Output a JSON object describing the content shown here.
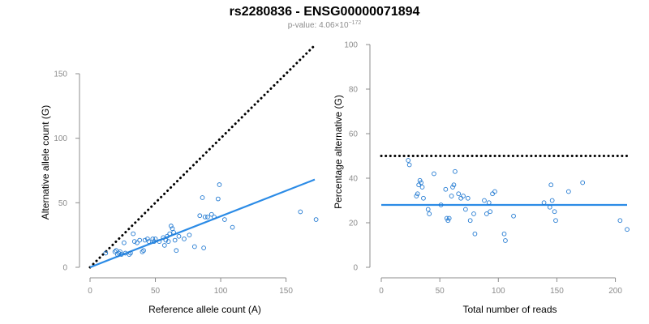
{
  "header": {
    "title": "rs2280836 - ENSG00000071894",
    "pvalue_prefix": "p-value: 4.06×10",
    "pvalue_exponent": "−172"
  },
  "colors": {
    "points": "#1f78d1",
    "fit_line": "#2b8be6",
    "reference_line": "#000000",
    "axis": "#8c8c8c"
  },
  "chart_data": [
    {
      "id": "left",
      "type": "scatter",
      "title": "",
      "xlabel": "Reference allele count (A)",
      "ylabel": "Alternative allele count (G)",
      "xlim": [
        0,
        172
      ],
      "ylim": [
        0,
        150
      ],
      "xticks": [
        0,
        50,
        100,
        150
      ],
      "yticks": [
        0,
        50,
        100,
        150
      ],
      "grid": false,
      "points": [
        [
          12,
          11
        ],
        [
          19,
          12
        ],
        [
          20,
          13
        ],
        [
          21,
          10
        ],
        [
          22,
          11
        ],
        [
          23,
          12
        ],
        [
          24,
          10
        ],
        [
          26,
          19
        ],
        [
          27,
          11
        ],
        [
          30,
          10
        ],
        [
          31,
          11
        ],
        [
          33,
          26
        ],
        [
          34,
          20
        ],
        [
          36,
          19
        ],
        [
          38,
          21
        ],
        [
          40,
          12
        ],
        [
          41,
          13
        ],
        [
          42,
          21
        ],
        [
          44,
          22
        ],
        [
          45,
          20
        ],
        [
          48,
          22
        ],
        [
          49,
          20
        ],
        [
          50,
          22
        ],
        [
          53,
          20
        ],
        [
          56,
          23
        ],
        [
          57,
          17
        ],
        [
          58,
          21
        ],
        [
          59,
          24
        ],
        [
          60,
          20
        ],
        [
          61,
          26
        ],
        [
          62,
          32
        ],
        [
          63,
          30
        ],
        [
          64,
          27
        ],
        [
          65,
          21
        ],
        [
          66,
          13
        ],
        [
          68,
          24
        ],
        [
          72,
          22
        ],
        [
          76,
          25
        ],
        [
          80,
          16
        ],
        [
          84,
          40
        ],
        [
          86,
          54
        ],
        [
          87,
          15
        ],
        [
          88,
          39
        ],
        [
          90,
          39
        ],
        [
          93,
          41
        ],
        [
          95,
          39
        ],
        [
          98,
          53
        ],
        [
          99,
          64
        ],
        [
          103,
          37
        ],
        [
          109,
          31
        ],
        [
          161,
          43
        ],
        [
          173,
          37
        ]
      ],
      "reference_line": {
        "style": "dotted",
        "x": [
          0,
          172
        ],
        "y": [
          0,
          172
        ]
      },
      "fit_line": {
        "style": "solid",
        "x": [
          0,
          172
        ],
        "y": [
          0,
          68
        ]
      }
    },
    {
      "id": "right",
      "type": "scatter",
      "title": "",
      "xlabel": "Total number of reads",
      "ylabel": "Percentage alternative (G)",
      "xlim": [
        0,
        210
      ],
      "ylim": [
        0,
        100
      ],
      "xticks": [
        0,
        50,
        100,
        150,
        200
      ],
      "yticks": [
        0,
        20,
        40,
        60,
        80,
        100
      ],
      "grid": false,
      "points": [
        [
          23,
          48
        ],
        [
          24,
          46
        ],
        [
          30,
          32
        ],
        [
          31,
          33
        ],
        [
          32,
          37
        ],
        [
          33,
          39
        ],
        [
          34,
          38
        ],
        [
          35,
          36
        ],
        [
          36,
          31
        ],
        [
          40,
          26
        ],
        [
          41,
          24
        ],
        [
          45,
          42
        ],
        [
          51,
          28
        ],
        [
          55,
          35
        ],
        [
          56,
          22
        ],
        [
          57,
          21
        ],
        [
          58,
          22
        ],
        [
          60,
          32
        ],
        [
          61,
          36
        ],
        [
          62,
          37
        ],
        [
          63,
          43
        ],
        [
          66,
          33
        ],
        [
          68,
          31
        ],
        [
          70,
          32
        ],
        [
          72,
          26
        ],
        [
          74,
          31
        ],
        [
          76,
          21
        ],
        [
          79,
          24
        ],
        [
          80,
          15
        ],
        [
          88,
          30
        ],
        [
          90,
          24
        ],
        [
          92,
          29
        ],
        [
          93,
          25
        ],
        [
          95,
          33
        ],
        [
          97,
          34
        ],
        [
          105,
          15
        ],
        [
          106,
          12
        ],
        [
          113,
          23
        ],
        [
          139,
          29
        ],
        [
          144,
          27
        ],
        [
          145,
          37
        ],
        [
          146,
          30
        ],
        [
          148,
          25
        ],
        [
          149,
          21
        ],
        [
          160,
          34
        ],
        [
          172,
          38
        ],
        [
          204,
          21
        ],
        [
          210,
          17
        ]
      ],
      "reference_line": {
        "style": "dotted",
        "x": [
          0,
          210
        ],
        "y": [
          50,
          50
        ]
      },
      "fit_line": {
        "style": "solid",
        "x": [
          0,
          210
        ],
        "y": [
          28,
          28
        ]
      }
    }
  ]
}
